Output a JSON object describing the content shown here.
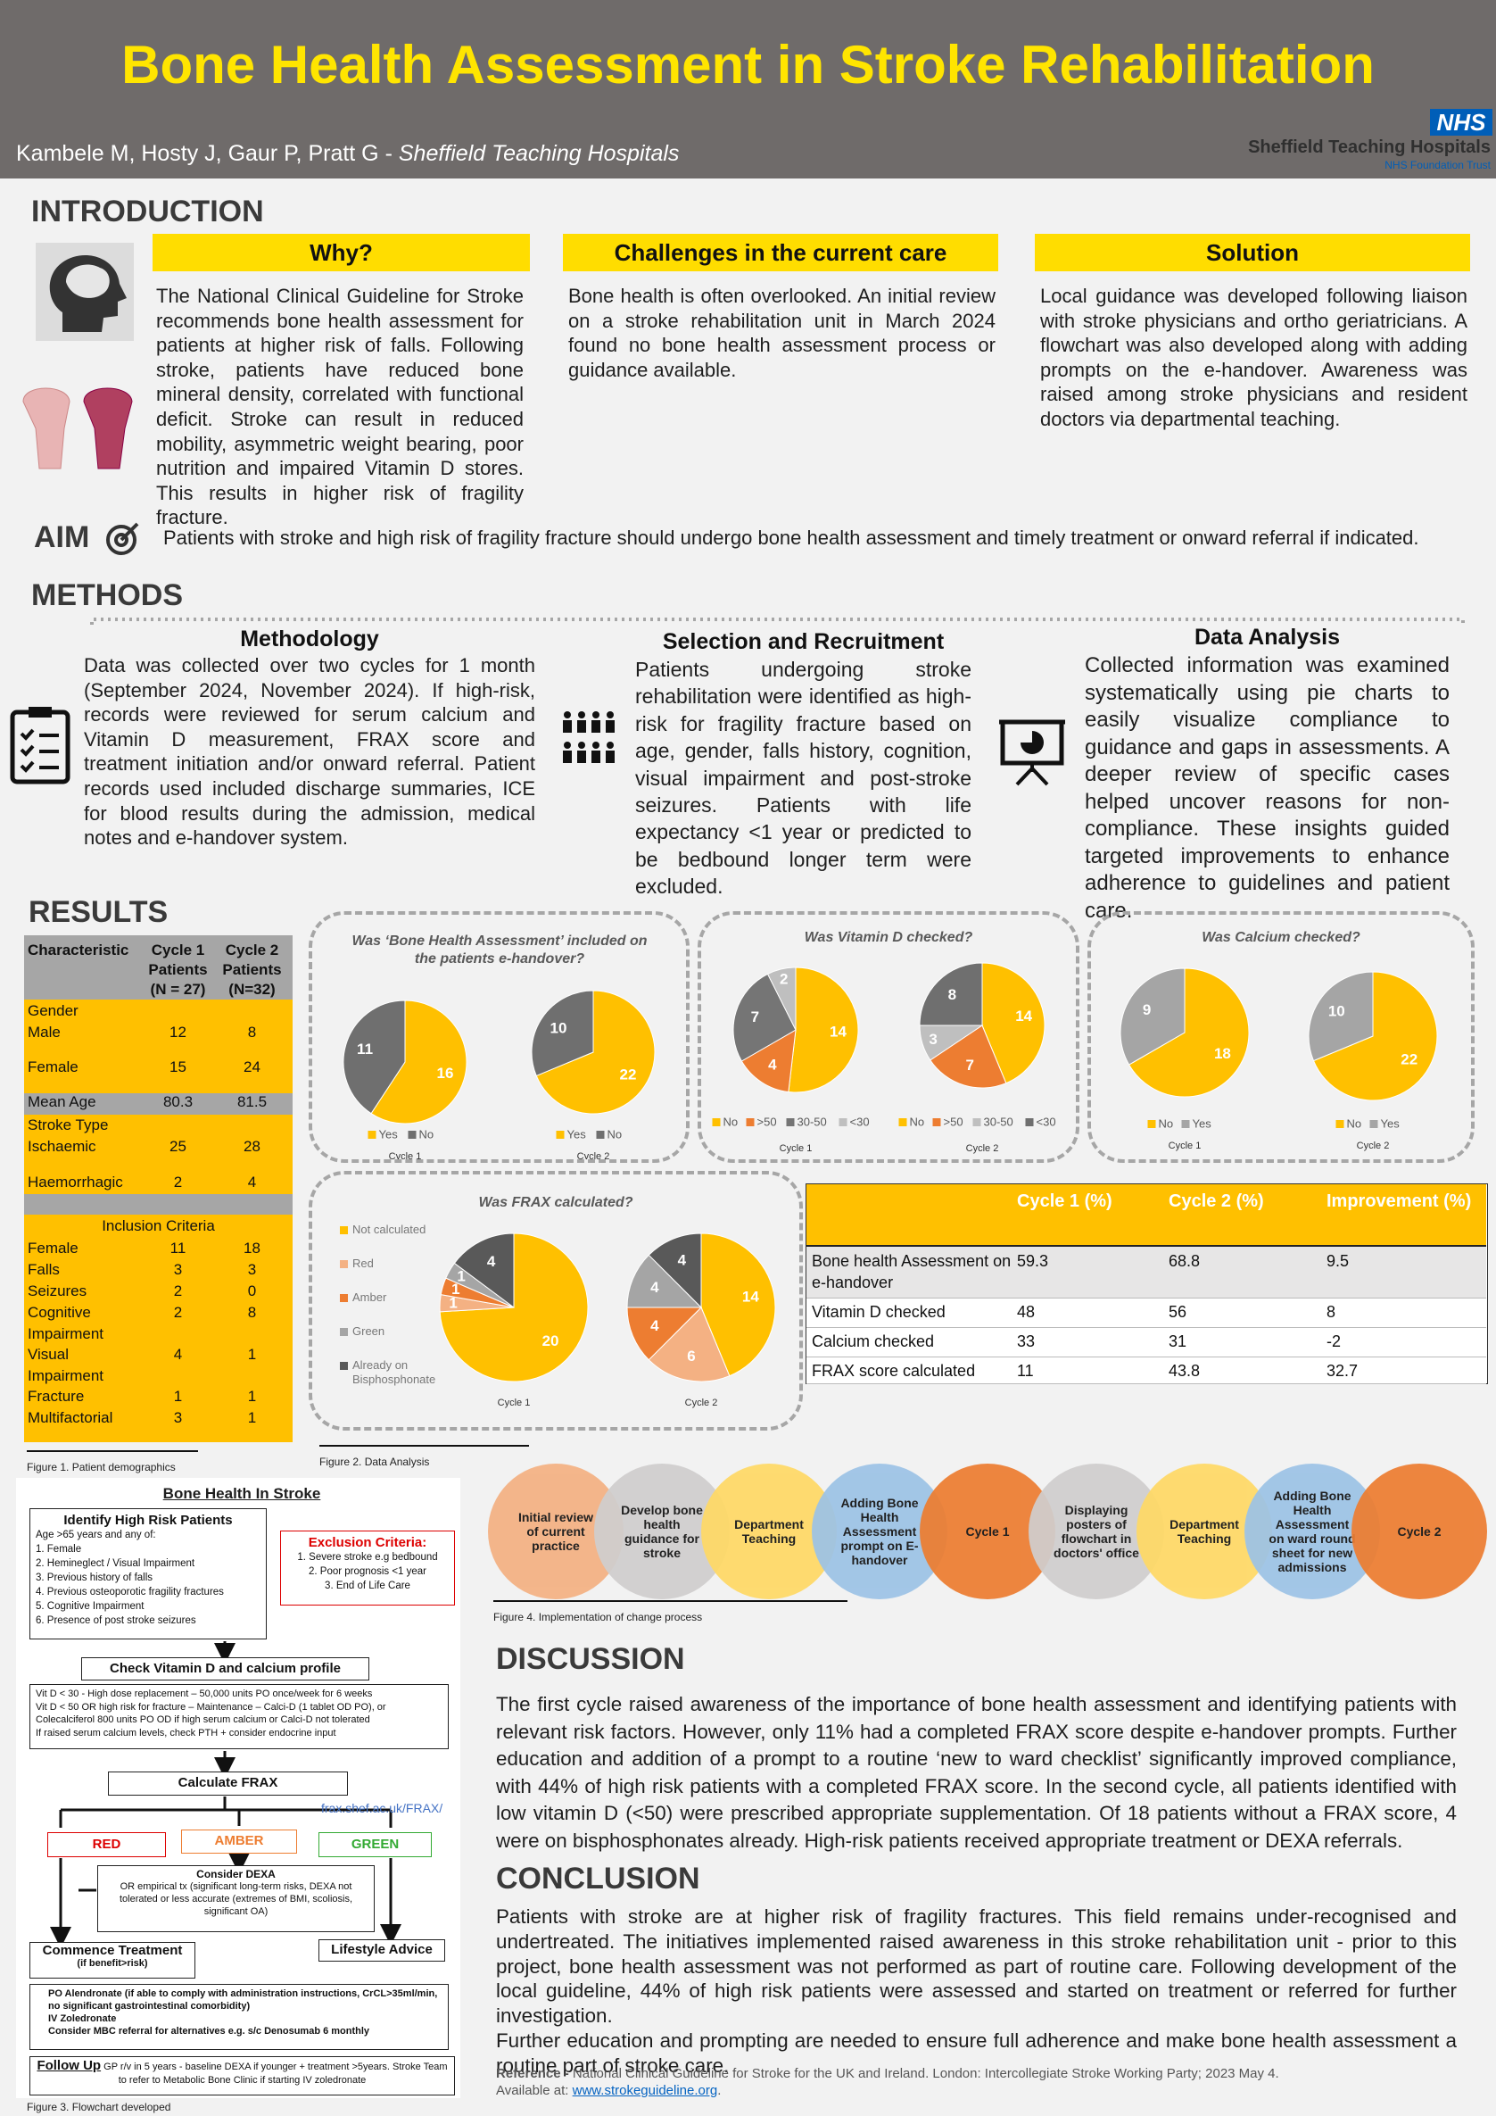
{
  "header": {
    "title": "Bone Health Assessment in Stroke Rehabilitation",
    "authors": "Kambele M, Hosty J, Gaur P, Pratt G - ",
    "affiliation": "Sheffield Teaching Hospitals",
    "logo": "NHS",
    "trust": "Sheffield Teaching Hospitals",
    "trust_sub": "NHS Foundation Trust"
  },
  "introduction": {
    "heading": "INTRODUCTION",
    "why": {
      "title": "Why?",
      "text": "The National Clinical Guideline for Stroke recommends bone health assessment for patients at higher risk of falls. Following stroke, patients have reduced bone mineral density, correlated with functional deficit. Stroke can result in reduced mobility, asymmetric weight bearing, poor nutrition and impaired Vitamin D stores. This results in higher risk of fragility fracture."
    },
    "challenges": {
      "title": "Challenges in the current care",
      "text": "Bone health is often overlooked. An initial review on a stroke rehabilitation unit in March 2024 found no bone health assessment process or guidance available."
    },
    "solution": {
      "title": "Solution",
      "text": "Local guidance was developed following liaison with stroke physicians and ortho geriatricians. A flowchart was also developed along with adding prompts on the e-handover. Awareness was raised among stroke physicians and resident doctors via departmental teaching."
    }
  },
  "aim": {
    "heading": "AIM",
    "text": "Patients with stroke and high risk of fragility fracture should undergo bone health assessment and timely treatment or onward referral if indicated."
  },
  "methods": {
    "heading": "METHODS",
    "methodology": {
      "title": "Methodology",
      "text": "Data was collected over two cycles for 1 month (September 2024, November 2024). If high-risk, records were reviewed for serum calcium and Vitamin D measurement, FRAX score and treatment initiation and/or onward referral. Patient records used included discharge summaries, ICE for blood results during the admission, medical notes and e-handover system."
    },
    "selection": {
      "title": "Selection and Recruitment",
      "text": "Patients undergoing stroke rehabilitation were identified as high-risk for fragility fracture based on age, gender, falls history, cognition, visual impairment and post-stroke seizures. Patients with life expectancy <1 year or predicted to be bedbound longer term were excluded."
    },
    "analysis": {
      "title": "Data Analysis",
      "text": "Collected information was examined systematically using pie charts to easily visualize compliance to guidance and gaps in assessments. A deeper review of specific cases helped uncover reasons for non-compliance. These insights guided targeted improvements to enhance adherence to guidelines and patient care."
    }
  },
  "results": {
    "heading": "RESULTS",
    "demographics": {
      "header": [
        "Characteristic",
        "Cycle 1 Patients (N = 27)",
        "Cycle 2 Patients (N=32)"
      ],
      "rows": [
        [
          "Gender"
        ],
        [
          "Male",
          "12",
          "8"
        ],
        [
          "Female",
          "15",
          "24"
        ],
        [
          "Mean Age",
          "80.3",
          "81.5"
        ],
        [
          "Stroke Type"
        ],
        [
          "Ischaemic",
          "25",
          "28"
        ],
        [
          "Haemorrhagic",
          "2",
          "4"
        ],
        [
          "Inclusion Criteria"
        ],
        [
          "Female",
          "11",
          "18"
        ],
        [
          "Falls",
          "3",
          "3"
        ],
        [
          "Seizures",
          "2",
          "0"
        ],
        [
          "Cognitive Impairment",
          "2",
          "8"
        ],
        [
          "Visual Impairment",
          "4",
          "1"
        ],
        [
          "Fracture",
          "1",
          "1"
        ],
        [
          "Multifactorial",
          "3",
          "1"
        ]
      ]
    },
    "figure1": "Figure 1. Patient demographics",
    "figure2": "Figure 2. Data Analysis",
    "improvement": {
      "header": [
        "Cycle 1 (%)",
        "Cycle 2 (%)",
        "Improvement (%)"
      ],
      "rows": [
        [
          "Bone health Assessment on e-handover",
          "59.3",
          "68.8",
          "9.5"
        ],
        [
          "Vitamin D checked",
          "48",
          "56",
          "8"
        ],
        [
          "Calcium checked",
          "33",
          "31",
          "-2"
        ],
        [
          "FRAX score calculated",
          "11",
          "43.8",
          "32.7"
        ]
      ]
    }
  },
  "chart_data": [
    {
      "type": "pie",
      "title": "Was ‘Bone Health Assessment’ included on the patients e-handover?",
      "categories": [
        "Yes",
        "No"
      ],
      "legend": "below",
      "pies": [
        {
          "label": "Cycle 1",
          "values": [
            16,
            11
          ],
          "colors": [
            "#FFC000",
            "#6F6F6F"
          ]
        },
        {
          "label": "Cycle 2",
          "values": [
            22,
            10
          ],
          "colors": [
            "#FFC000",
            "#6F6F6F"
          ]
        }
      ]
    },
    {
      "type": "pie",
      "title": "Was Vitamin D checked?",
      "categories": [
        "No",
        ">50",
        "30-50",
        "<30"
      ],
      "legend": "below",
      "pies": [
        {
          "label": "Cycle 1",
          "values": [
            14,
            4,
            7,
            2
          ],
          "colors": [
            "#FFC000",
            "#ED7D31",
            "#757575",
            "#BFBFBF"
          ]
        },
        {
          "label": "Cycle 2",
          "values": [
            14,
            7,
            3,
            8
          ],
          "colors": [
            "#FFC000",
            "#ED7D31",
            "#BFBFBF",
            "#6F6F6F"
          ]
        }
      ]
    },
    {
      "type": "pie",
      "title": "Was Calcium checked?",
      "categories": [
        "No",
        "Yes"
      ],
      "legend": "below",
      "pies": [
        {
          "label": "Cycle 1",
          "values": [
            18,
            9
          ],
          "colors": [
            "#FFC000",
            "#A5A5A5"
          ]
        },
        {
          "label": "Cycle 2",
          "values": [
            22,
            10
          ],
          "colors": [
            "#FFC000",
            "#A5A5A5"
          ]
        }
      ]
    },
    {
      "type": "pie",
      "title": "Was FRAX calculated?",
      "categories": [
        "Not calculated",
        "Red",
        "Amber",
        "Green",
        "Already on Bisphosphonate"
      ],
      "legend": "left",
      "pies": [
        {
          "label": "Cycle 1",
          "values": [
            20,
            1,
            1,
            1,
            4
          ],
          "colors": [
            "#FFC000",
            "#F4B183",
            "#ED7D31",
            "#A5A5A5",
            "#595959"
          ]
        },
        {
          "label": "Cycle 2",
          "values": [
            14,
            6,
            4,
            4,
            4
          ],
          "colors": [
            "#FFC000",
            "#F4B183",
            "#ED7D31",
            "#A5A5A5",
            "#595959"
          ]
        }
      ]
    }
  ],
  "flowchart": {
    "title": "Bone Health In Stroke",
    "identify_title": "Identify High Risk Patients",
    "identify_intro": "Age >65 years and any of:",
    "identify_items": [
      "1. Female",
      "2. Hemineglect / Visual Impairment",
      "3. Previous history of falls",
      "4. Previous osteoporotic fragility fractures",
      "5. Cognitive Impairment",
      "6. Presence of post stroke seizures"
    ],
    "exclusion_title": "Exclusion Criteria:",
    "exclusion_items": [
      "1. Severe stroke e.g bedbound",
      "2. Poor prognosis <1 year",
      "3. End of Life Care"
    ],
    "check": "Check Vitamin D and calcium profile",
    "vitd_lines": [
      "Vit D < 30 - High dose replacement – 50,000 units PO once/week for 6 weeks",
      "Vit D < 50 OR high risk for fracture – Maintenance – Calci-D (1 tablet OD PO), or Colecalciferol 800 units PO OD if high serum calcium or Calci-D not tolerated",
      "If raised serum calcium levels, check PTH + consider endocrine input"
    ],
    "calculate": "Calculate FRAX",
    "link": "frax.shef.ac.uk/FRAX/",
    "red": "RED",
    "amber": "AMBER",
    "green": "GREEN",
    "consider_title": "Consider DEXA",
    "consider_text": "OR empirical tx (significant long-term risks, DEXA not tolerated or less accurate (extremes of BMI, scoliosis, significant OA)",
    "commence_title": "Commence Treatment",
    "commence_sub": "(if benefit>risk)",
    "lifestyle": "Lifestyle Advice",
    "treatments": [
      "PO Alendronate (if able to comply with administration instructions, CrCL>35ml/min, no significant gastrointestinal comorbidity)",
      "IV Zoledronate",
      "Consider MBC referral for alternatives e.g. s/c Denosumab 6 monthly"
    ],
    "followup_title": "Follow Up",
    "followup_text": "GP r/v in 5 years - baseline DEXA if younger + treatment >5years. Stroke Team to refer to Metabolic Bone Clinic if starting IV zoledronate",
    "caption": "Figure 3. Flowchart developed"
  },
  "implementation": {
    "steps": [
      "Initial review of current practice",
      "Develop bone health guidance for stroke",
      "Department Teaching",
      "Adding Bone Health Assessment prompt on E-handover",
      "Cycle 1",
      "Displaying posters of flowchart in doctors' office",
      "Department Teaching",
      "Adding Bone Health Assessment on ward round sheet for new admissions",
      "Cycle 2"
    ],
    "caption": "Figure 4. Implementation of change process"
  },
  "discussion": {
    "heading": "DISCUSSION",
    "text": "The first cycle raised awareness of the importance of bone health assessment and identifying patients with relevant risk factors. However, only 11% had a completed FRAX score despite e-handover prompts. Further education and addition of a prompt to a routine ‘new to ward checklist’ significantly improved compliance, with 44% of high risk patients with a completed FRAX score. In the second cycle, all patients identified with low vitamin D (<50) were prescribed appropriate supplementation. Of 18 patients without a FRAX score, 4 were on bisphosphonates already. High-risk patients received appropriate treatment or DEXA referrals."
  },
  "conclusion": {
    "heading": "CONCLUSION",
    "paragraphs": [
      "Patients with stroke are at higher risk of fragility fractures. This field remains under-recognised and undertreated. The initiatives implemented raised awareness in this stroke rehabilitation unit - prior to this project, bone health assessment was not performed as part of routine care. Following development of the local guideline, 44% of high risk patients were assessed and started on treatment or referred for further investigation.",
      "Further education and prompting are needed to ensure full adherence and make bone health assessment a routine part of stroke care."
    ]
  },
  "reference": {
    "label": "Reference -",
    "text": " National Clinical Guideline for Stroke for the UK and Ireland. London: Intercollegiate Stroke Working Party; 2023 May 4.",
    "available": "Available at: ",
    "link": "www.strokeguideline.org",
    "end": "."
  }
}
